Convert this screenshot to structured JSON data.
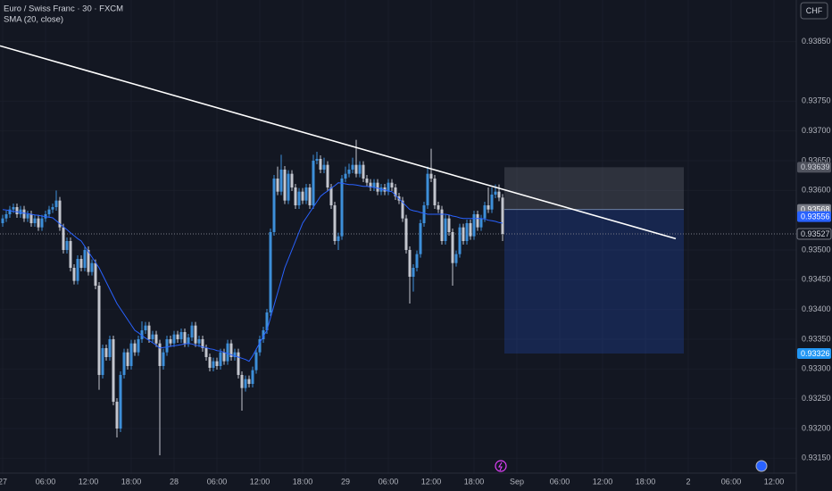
{
  "header": {
    "symbol": "Euro / Swiss Franc · 30 · FXCM",
    "indicator": "SMA (20, close)",
    "currency": "CHF"
  },
  "chart_data": {
    "type": "candlestick",
    "x": [
      0,
      0.5,
      1,
      1.5,
      2,
      2.5,
      3,
      3.5,
      4,
      4.5,
      5,
      5.5,
      6,
      6.5,
      7,
      7.5,
      8,
      8.5,
      9,
      9.5,
      10,
      10.5,
      11,
      11.5,
      12,
      12.5,
      13,
      13.5,
      14,
      14.5,
      15,
      15.5,
      16,
      16.5,
      17,
      17.5,
      18,
      18.5,
      19,
      19.5,
      20,
      20.5,
      21,
      21.5,
      22,
      22.5,
      23,
      23.5,
      24,
      24.5,
      25,
      25.5,
      26,
      26.5,
      27,
      27.5,
      28,
      28.5,
      29,
      29.5,
      30,
      30.5,
      31,
      31.5,
      32,
      32.5,
      33,
      33.5,
      34,
      34.5,
      35,
      35.5,
      36,
      36.5,
      37,
      37.5,
      38,
      38.5,
      39,
      39.5,
      40,
      40.5,
      41,
      41.5,
      42,
      42.5,
      43,
      43.5,
      44,
      44.5,
      45,
      45.5,
      46,
      46.5,
      47,
      47.5,
      48,
      48.5,
      49,
      49.5,
      50,
      50.5,
      51,
      51.5,
      52,
      52.5,
      53,
      53.5,
      54,
      54.5,
      55,
      55.5,
      56,
      56.5,
      57,
      57.5,
      58,
      58.5,
      59,
      59.5,
      60,
      60.5,
      61,
      61.5,
      62,
      62.5,
      63,
      63.5,
      64,
      64.5,
      65,
      65.5,
      66,
      66.5,
      67,
      67.5,
      68,
      68.5,
      69,
      69.5,
      70
    ],
    "candles": [
      [
        0.93545,
        0.93559,
        0.93539,
        0.93553
      ],
      [
        0.93553,
        0.93566,
        0.93547,
        0.9356
      ],
      [
        0.9356,
        0.93574,
        0.93554,
        0.93568
      ],
      [
        0.93568,
        0.93578,
        0.93562,
        0.93572
      ],
      [
        0.93572,
        0.93578,
        0.93554,
        0.9356
      ],
      [
        0.9356,
        0.93574,
        0.93554,
        0.93568
      ],
      [
        0.93568,
        0.93574,
        0.93547,
        0.93553
      ],
      [
        0.93553,
        0.93566,
        0.93547,
        0.9356
      ],
      [
        0.9356,
        0.93566,
        0.93539,
        0.93545
      ],
      [
        0.93545,
        0.93559,
        0.93539,
        0.93553
      ],
      [
        0.93553,
        0.93559,
        0.93532,
        0.93538
      ],
      [
        0.93538,
        0.93559,
        0.93532,
        0.93553
      ],
      [
        0.93553,
        0.93566,
        0.93547,
        0.9356
      ],
      [
        0.9356,
        0.93574,
        0.93554,
        0.93568
      ],
      [
        0.93568,
        0.93578,
        0.93562,
        0.93572
      ],
      [
        0.93572,
        0.936,
        0.93566,
        0.93583
      ],
      [
        0.93583,
        0.93589,
        0.93532,
        0.93538
      ],
      [
        0.93538,
        0.93544,
        0.93494,
        0.935
      ],
      [
        0.935,
        0.93521,
        0.93494,
        0.93515
      ],
      [
        0.93515,
        0.93521,
        0.93464,
        0.9347
      ],
      [
        0.9347,
        0.93476,
        0.93442,
        0.93448
      ],
      [
        0.93448,
        0.93491,
        0.93442,
        0.93485
      ],
      [
        0.93485,
        0.93491,
        0.93464,
        0.9347
      ],
      [
        0.9347,
        0.93506,
        0.93464,
        0.935
      ],
      [
        0.935,
        0.93506,
        0.93457,
        0.93463
      ],
      [
        0.93463,
        0.93484,
        0.93457,
        0.93478
      ],
      [
        0.93478,
        0.93484,
        0.93434,
        0.9344
      ],
      [
        0.9344,
        0.93446,
        0.93265,
        0.9329
      ],
      [
        0.9329,
        0.93341,
        0.93284,
        0.93335
      ],
      [
        0.93335,
        0.93341,
        0.93314,
        0.9332
      ],
      [
        0.9332,
        0.93356,
        0.93314,
        0.9335
      ],
      [
        0.9335,
        0.93356,
        0.93239,
        0.93245
      ],
      [
        0.93245,
        0.93251,
        0.93185,
        0.932
      ],
      [
        0.932,
        0.93296,
        0.93194,
        0.9329
      ],
      [
        0.9329,
        0.93334,
        0.93284,
        0.93328
      ],
      [
        0.93328,
        0.93334,
        0.93299,
        0.93305
      ],
      [
        0.93305,
        0.93349,
        0.93299,
        0.93343
      ],
      [
        0.93343,
        0.93349,
        0.93322,
        0.93328
      ],
      [
        0.93328,
        0.93356,
        0.93322,
        0.9335
      ],
      [
        0.9335,
        0.9338,
        0.93344,
        0.93365
      ],
      [
        0.93365,
        0.93379,
        0.93359,
        0.93373
      ],
      [
        0.93373,
        0.93379,
        0.93344,
        0.9335
      ],
      [
        0.9335,
        0.93364,
        0.93344,
        0.93358
      ],
      [
        0.93358,
        0.93364,
        0.93337,
        0.93343
      ],
      [
        0.93343,
        0.93349,
        0.93155,
        0.93305
      ],
      [
        0.93305,
        0.93334,
        0.93299,
        0.93328
      ],
      [
        0.93328,
        0.93356,
        0.93322,
        0.9335
      ],
      [
        0.9335,
        0.93356,
        0.93337,
        0.93343
      ],
      [
        0.93343,
        0.93364,
        0.93337,
        0.93358
      ],
      [
        0.93358,
        0.93364,
        0.93344,
        0.9335
      ],
      [
        0.9335,
        0.93368,
        0.93344,
        0.93362
      ],
      [
        0.93362,
        0.93368,
        0.93337,
        0.93343
      ],
      [
        0.93343,
        0.93359,
        0.93337,
        0.93353
      ],
      [
        0.93353,
        0.93379,
        0.93347,
        0.93373
      ],
      [
        0.93373,
        0.93379,
        0.93337,
        0.93343
      ],
      [
        0.93343,
        0.93356,
        0.93337,
        0.9335
      ],
      [
        0.9335,
        0.93356,
        0.93329,
        0.93335
      ],
      [
        0.93335,
        0.93341,
        0.93314,
        0.9332
      ],
      [
        0.9332,
        0.93326,
        0.93296,
        0.93302
      ],
      [
        0.93302,
        0.93319,
        0.93296,
        0.93313
      ],
      [
        0.93313,
        0.93319,
        0.93299,
        0.93305
      ],
      [
        0.93305,
        0.93334,
        0.93299,
        0.93328
      ],
      [
        0.93328,
        0.93334,
        0.93307,
        0.93313
      ],
      [
        0.93313,
        0.93349,
        0.93307,
        0.93343
      ],
      [
        0.93343,
        0.93349,
        0.93314,
        0.9332
      ],
      [
        0.9332,
        0.93334,
        0.93314,
        0.93328
      ],
      [
        0.93328,
        0.93334,
        0.93284,
        0.9329
      ],
      [
        0.9329,
        0.93296,
        0.9323,
        0.93268
      ],
      [
        0.93268,
        0.93289,
        0.93262,
        0.93283
      ],
      [
        0.93283,
        0.93289,
        0.93269,
        0.93275
      ],
      [
        0.93275,
        0.93304,
        0.93269,
        0.93298
      ],
      [
        0.93298,
        0.93334,
        0.93292,
        0.93328
      ],
      [
        0.93328,
        0.93356,
        0.93322,
        0.9335
      ],
      [
        0.9335,
        0.93371,
        0.93344,
        0.93365
      ],
      [
        0.93365,
        0.93401,
        0.93359,
        0.93395
      ],
      [
        0.93395,
        0.93536,
        0.93389,
        0.9353
      ],
      [
        0.9353,
        0.93626,
        0.93524,
        0.9362
      ],
      [
        0.9362,
        0.9364,
        0.93592,
        0.93598
      ],
      [
        0.93598,
        0.9366,
        0.93592,
        0.93635
      ],
      [
        0.93635,
        0.93641,
        0.93577,
        0.93583
      ],
      [
        0.93583,
        0.93634,
        0.93577,
        0.93628
      ],
      [
        0.93628,
        0.93634,
        0.93599,
        0.93605
      ],
      [
        0.93605,
        0.93611,
        0.93569,
        0.93575
      ],
      [
        0.93575,
        0.93604,
        0.93569,
        0.93598
      ],
      [
        0.93598,
        0.93604,
        0.93577,
        0.93583
      ],
      [
        0.93583,
        0.93611,
        0.93577,
        0.93605
      ],
      [
        0.93605,
        0.93611,
        0.93569,
        0.93575
      ],
      [
        0.93575,
        0.9366,
        0.93569,
        0.9365
      ],
      [
        0.9365,
        0.93665,
        0.93644,
        0.93653
      ],
      [
        0.93653,
        0.93659,
        0.93629,
        0.93635
      ],
      [
        0.93635,
        0.93655,
        0.93629,
        0.93643
      ],
      [
        0.93643,
        0.93649,
        0.93599,
        0.93605
      ],
      [
        0.93605,
        0.93611,
        0.93569,
        0.93575
      ],
      [
        0.93575,
        0.93581,
        0.93509,
        0.93515
      ],
      [
        0.93515,
        0.93529,
        0.935,
        0.93523
      ],
      [
        0.93523,
        0.93626,
        0.93517,
        0.9362
      ],
      [
        0.9362,
        0.9364,
        0.93614,
        0.93628
      ],
      [
        0.93628,
        0.93645,
        0.93622,
        0.93635
      ],
      [
        0.93635,
        0.93655,
        0.93629,
        0.93643
      ],
      [
        0.93643,
        0.93685,
        0.93622,
        0.93628
      ],
      [
        0.93628,
        0.93649,
        0.93622,
        0.93643
      ],
      [
        0.93643,
        0.93649,
        0.93614,
        0.9362
      ],
      [
        0.9362,
        0.93626,
        0.93607,
        0.93613
      ],
      [
        0.93613,
        0.93619,
        0.93599,
        0.93605
      ],
      [
        0.93605,
        0.93619,
        0.93599,
        0.93613
      ],
      [
        0.93613,
        0.93619,
        0.93592,
        0.93598
      ],
      [
        0.93598,
        0.93611,
        0.93592,
        0.93605
      ],
      [
        0.93605,
        0.93611,
        0.93592,
        0.93598
      ],
      [
        0.93598,
        0.93619,
        0.93592,
        0.93613
      ],
      [
        0.93613,
        0.93619,
        0.93599,
        0.93605
      ],
      [
        0.93605,
        0.93611,
        0.93584,
        0.9359
      ],
      [
        0.9359,
        0.93596,
        0.93577,
        0.93583
      ],
      [
        0.93583,
        0.93589,
        0.93547,
        0.93553
      ],
      [
        0.93553,
        0.93559,
        0.93494,
        0.935
      ],
      [
        0.935,
        0.93506,
        0.9341,
        0.93455
      ],
      [
        0.93455,
        0.93476,
        0.9343,
        0.9347
      ],
      [
        0.9347,
        0.93499,
        0.93464,
        0.93493
      ],
      [
        0.93493,
        0.93551,
        0.93487,
        0.93545
      ],
      [
        0.93545,
        0.93581,
        0.93539,
        0.93575
      ],
      [
        0.93575,
        0.9364,
        0.93569,
        0.93628
      ],
      [
        0.93628,
        0.9367,
        0.93614,
        0.9362
      ],
      [
        0.9362,
        0.93626,
        0.93569,
        0.93575
      ],
      [
        0.93575,
        0.93581,
        0.93562,
        0.93568
      ],
      [
        0.93568,
        0.93574,
        0.93509,
        0.93515
      ],
      [
        0.93515,
        0.93559,
        0.93509,
        0.93553
      ],
      [
        0.93553,
        0.93559,
        0.93524,
        0.9353
      ],
      [
        0.9353,
        0.93536,
        0.9344,
        0.93478
      ],
      [
        0.93478,
        0.93499,
        0.93472,
        0.93493
      ],
      [
        0.93493,
        0.93544,
        0.93487,
        0.93538
      ],
      [
        0.93538,
        0.93544,
        0.93509,
        0.93515
      ],
      [
        0.93515,
        0.93551,
        0.93509,
        0.93545
      ],
      [
        0.93545,
        0.93551,
        0.93517,
        0.93523
      ],
      [
        0.93523,
        0.93566,
        0.93517,
        0.9356
      ],
      [
        0.9356,
        0.93566,
        0.93532,
        0.93538
      ],
      [
        0.93538,
        0.93559,
        0.93532,
        0.93553
      ],
      [
        0.93553,
        0.93581,
        0.93547,
        0.93575
      ],
      [
        0.93575,
        0.93605,
        0.93562,
        0.93568
      ],
      [
        0.93568,
        0.93605,
        0.93562,
        0.93593
      ],
      [
        0.93593,
        0.9361,
        0.93587,
        0.93598
      ],
      [
        0.93598,
        0.9361,
        0.93582,
        0.93588
      ],
      [
        0.93588,
        0.93594,
        0.93515,
        0.93527
      ]
    ],
    "up_color": "#3d8fd9",
    "down_color": "#c3c6ce",
    "sma": {
      "color": "#2962ff",
      "values": [
        0.93568,
        0.93567,
        0.93566,
        0.93565,
        0.93564,
        0.93563,
        0.93562,
        0.93561,
        0.9356,
        0.93559,
        0.93558,
        0.93557,
        0.93556,
        0.93555,
        0.93554,
        0.93549,
        0.93544,
        0.93539,
        0.93534,
        0.93529,
        0.93524,
        0.93519,
        0.93515,
        0.93506,
        0.93497,
        0.93488,
        0.93479,
        0.9347,
        0.93458,
        0.93446,
        0.93434,
        0.93422,
        0.9341,
        0.93401,
        0.93392,
        0.93383,
        0.93374,
        0.93365,
        0.93361,
        0.93356,
        0.93352,
        0.93348,
        0.93344,
        0.9334,
        0.93335,
        0.93336,
        0.93337,
        0.93338,
        0.93339,
        0.9334,
        0.93341,
        0.93342,
        0.93343,
        0.93342,
        0.9334,
        0.93339,
        0.93337,
        0.93336,
        0.93334,
        0.93333,
        0.93331,
        0.9333,
        0.93328,
        0.93326,
        0.93324,
        0.93322,
        0.9332,
        0.93318,
        0.93316,
        0.93313,
        0.93322,
        0.93333,
        0.93344,
        0.93355,
        0.93365,
        0.93386,
        0.93407,
        0.93428,
        0.93449,
        0.9347,
        0.93485,
        0.935,
        0.93515,
        0.9353,
        0.93545,
        0.93554,
        0.93563,
        0.93572,
        0.93581,
        0.9359,
        0.93595,
        0.93599,
        0.93604,
        0.93608,
        0.93613,
        0.93612,
        0.93611,
        0.9361,
        0.9361,
        0.93609,
        0.93608,
        0.93607,
        0.93607,
        0.93606,
        0.93605,
        0.93604,
        0.93602,
        0.93601,
        0.93599,
        0.93598,
        0.93592,
        0.93586,
        0.9358,
        0.93574,
        0.93568,
        0.93566,
        0.93565,
        0.93563,
        0.93562,
        0.9356,
        0.9356,
        0.9356,
        0.9356,
        0.9356,
        0.9356,
        0.93559,
        0.93557,
        0.93556,
        0.93554,
        0.93553,
        0.93553,
        0.93553,
        0.93553,
        0.93553,
        0.93553,
        0.93552,
        0.9355,
        0.93549,
        0.93548,
        0.93546,
        0.93545
      ]
    },
    "trendline": {
      "x": [
        -0.375,
        94.25
      ],
      "y": [
        0.93843,
        0.93519
      ],
      "color": "#ffffff"
    },
    "position": {
      "x": [
        70.25,
        95.375
      ],
      "stop": 0.93639,
      "entry": 0.93568,
      "target": 0.93326
    },
    "marker_price": 0.93556,
    "last_price": 0.93527,
    "xlim": [
      -0.375,
      111.125
    ],
    "ylim": [
      0.93125,
      0.9392
    ],
    "xticks": [
      {
        "value": 0,
        "label": "27"
      },
      {
        "value": 6,
        "label": "06:00"
      },
      {
        "value": 12,
        "label": "12:00"
      },
      {
        "value": 18,
        "label": "18:00"
      },
      {
        "value": 24,
        "label": "28"
      },
      {
        "value": 30,
        "label": "06:00"
      },
      {
        "value": 36,
        "label": "12:00"
      },
      {
        "value": 42,
        "label": "18:00"
      },
      {
        "value": 48,
        "label": "29"
      },
      {
        "value": 54,
        "label": "06:00"
      },
      {
        "value": 60,
        "label": "12:00"
      },
      {
        "value": 66,
        "label": "18:00"
      },
      {
        "value": 72,
        "label": "Sep"
      },
      {
        "value": 78,
        "label": "06:00"
      },
      {
        "value": 84,
        "label": "12:00"
      },
      {
        "value": 90,
        "label": "18:00"
      },
      {
        "value": 96,
        "label": "2"
      },
      {
        "value": 102,
        "label": "06:00"
      },
      {
        "value": 108,
        "label": "12:00"
      }
    ],
    "yticks": [
      {
        "value": 0.9385,
        "label": "0.93850"
      },
      {
        "value": 0.9375,
        "label": "0.93750"
      },
      {
        "value": 0.937,
        "label": "0.93700"
      },
      {
        "value": 0.9365,
        "label": "0.93650"
      },
      {
        "value": 0.936,
        "label": "0.93600"
      },
      {
        "value": 0.935,
        "label": "0.93500"
      },
      {
        "value": 0.9345,
        "label": "0.93450"
      },
      {
        "value": 0.934,
        "label": "0.93400"
      },
      {
        "value": 0.9335,
        "label": "0.93350"
      },
      {
        "value": 0.933,
        "label": "0.93300"
      },
      {
        "value": 0.9325,
        "label": "0.93250"
      },
      {
        "value": 0.932,
        "label": "0.93200"
      },
      {
        "value": 0.9315,
        "label": "0.93150"
      }
    ]
  }
}
